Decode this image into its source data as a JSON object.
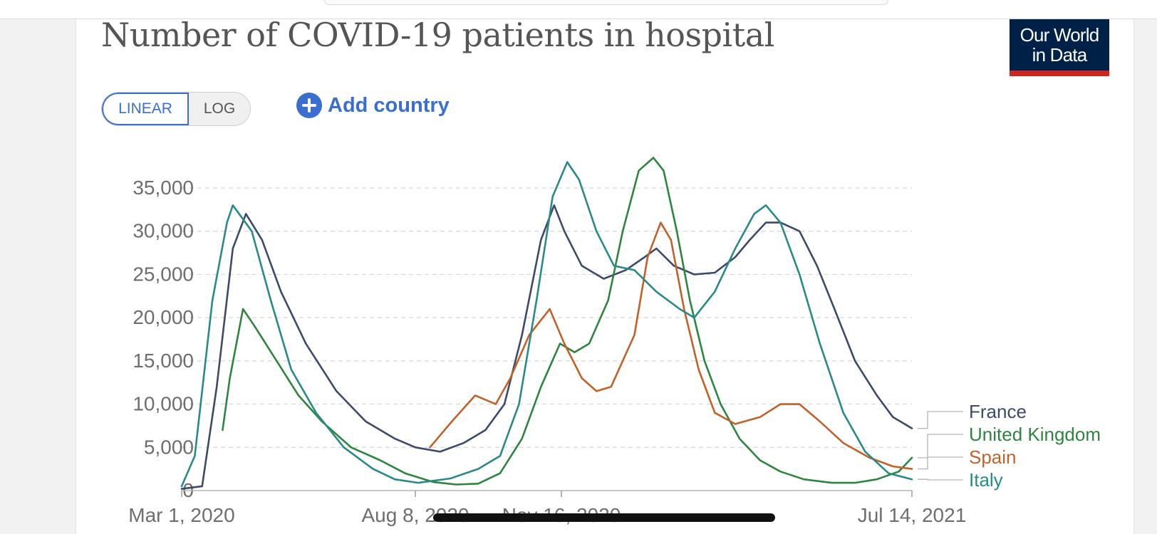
{
  "header": {
    "title": "Number of COVID-19 patients in hospital",
    "logo_line1": "Our World",
    "logo_line2": "in Data"
  },
  "controls": {
    "scale_linear": "LINEAR",
    "scale_log": "LOG",
    "scale_selected": "LINEAR",
    "add_country": "Add country"
  },
  "chart_data": {
    "type": "line",
    "title": "Number of COVID-19 patients in hospital",
    "xlabel": "",
    "ylabel": "",
    "ylim": [
      0,
      37500
    ],
    "x_range": [
      "2020-03-01",
      "2021-07-14"
    ],
    "grid": true,
    "legend_placement": "right",
    "yticks": [
      {
        "value": 0,
        "label": "0"
      },
      {
        "value": 5000,
        "label": "5,000"
      },
      {
        "value": 10000,
        "label": "10,000"
      },
      {
        "value": 15000,
        "label": "15,000"
      },
      {
        "value": 20000,
        "label": "20,000"
      },
      {
        "value": 25000,
        "label": "25,000"
      },
      {
        "value": 30000,
        "label": "30,000"
      },
      {
        "value": 35000,
        "label": "35,000"
      }
    ],
    "xticks": [
      {
        "date": "2020-03-01",
        "label": "Mar 1, 2020"
      },
      {
        "date": "2020-08-08",
        "label": "Aug 8, 2020"
      },
      {
        "date": "2020-11-16",
        "label": "Nov 16, 2020"
      },
      {
        "date": "2021-07-14",
        "label": "Jul 14, 2021"
      }
    ],
    "series": [
      {
        "name": "France",
        "color": "#3c4a6b",
        "points": [
          [
            "2020-03-01",
            200
          ],
          [
            "2020-03-15",
            500
          ],
          [
            "2020-03-25",
            12000
          ],
          [
            "2020-04-05",
            28000
          ],
          [
            "2020-04-14",
            32000
          ],
          [
            "2020-04-25",
            29000
          ],
          [
            "2020-05-08",
            23000
          ],
          [
            "2020-05-25",
            17000
          ],
          [
            "2020-06-15",
            11500
          ],
          [
            "2020-07-05",
            8000
          ],
          [
            "2020-07-25",
            6000
          ],
          [
            "2020-08-08",
            5000
          ],
          [
            "2020-08-25",
            4500
          ],
          [
            "2020-09-10",
            5500
          ],
          [
            "2020-09-25",
            7000
          ],
          [
            "2020-10-08",
            10000
          ],
          [
            "2020-10-20",
            18000
          ],
          [
            "2020-11-02",
            29000
          ],
          [
            "2020-11-11",
            33000
          ],
          [
            "2020-11-18",
            30000
          ],
          [
            "2020-11-30",
            26000
          ],
          [
            "2020-12-15",
            24500
          ],
          [
            "2020-12-30",
            25500
          ],
          [
            "2021-01-12",
            27000
          ],
          [
            "2021-01-20",
            28000
          ],
          [
            "2021-02-01",
            26000
          ],
          [
            "2021-02-15",
            25000
          ],
          [
            "2021-03-01",
            25200
          ],
          [
            "2021-03-15",
            27000
          ],
          [
            "2021-03-25",
            29000
          ],
          [
            "2021-04-05",
            31000
          ],
          [
            "2021-04-15",
            31000
          ],
          [
            "2021-04-28",
            30000
          ],
          [
            "2021-05-10",
            26000
          ],
          [
            "2021-05-22",
            21000
          ],
          [
            "2021-06-05",
            15000
          ],
          [
            "2021-06-20",
            11000
          ],
          [
            "2021-07-01",
            8500
          ],
          [
            "2021-07-14",
            7200
          ]
        ]
      },
      {
        "name": "United Kingdom",
        "color": "#2e8540",
        "points": [
          [
            "2020-03-29",
            7000
          ],
          [
            "2020-04-03",
            13000
          ],
          [
            "2020-04-12",
            21000
          ],
          [
            "2020-04-20",
            19000
          ],
          [
            "2020-05-05",
            15000
          ],
          [
            "2020-05-20",
            11000
          ],
          [
            "2020-06-05",
            8000
          ],
          [
            "2020-06-25",
            5000
          ],
          [
            "2020-07-15",
            3500
          ],
          [
            "2020-08-01",
            2000
          ],
          [
            "2020-08-20",
            1000
          ],
          [
            "2020-09-05",
            700
          ],
          [
            "2020-09-20",
            800
          ],
          [
            "2020-10-05",
            2000
          ],
          [
            "2020-10-20",
            6000
          ],
          [
            "2020-11-02",
            12000
          ],
          [
            "2020-11-15",
            17000
          ],
          [
            "2020-11-25",
            16000
          ],
          [
            "2020-12-05",
            17000
          ],
          [
            "2020-12-18",
            22000
          ],
          [
            "2020-12-28",
            30000
          ],
          [
            "2021-01-08",
            37000
          ],
          [
            "2021-01-18",
            38500
          ],
          [
            "2021-01-25",
            37000
          ],
          [
            "2021-02-03",
            30000
          ],
          [
            "2021-02-12",
            22000
          ],
          [
            "2021-02-22",
            15000
          ],
          [
            "2021-03-05",
            10000
          ],
          [
            "2021-03-18",
            6000
          ],
          [
            "2021-04-01",
            3500
          ],
          [
            "2021-04-15",
            2200
          ],
          [
            "2021-05-01",
            1300
          ],
          [
            "2021-05-20",
            900
          ],
          [
            "2021-06-05",
            900
          ],
          [
            "2021-06-20",
            1300
          ],
          [
            "2021-07-05",
            2200
          ],
          [
            "2021-07-14",
            3800
          ]
        ]
      },
      {
        "name": "Spain",
        "color": "#c0622a",
        "points": [
          [
            "2020-08-18",
            5000
          ],
          [
            "2020-09-02",
            8000
          ],
          [
            "2020-09-18",
            11000
          ],
          [
            "2020-10-02",
            10000
          ],
          [
            "2020-10-12",
            13000
          ],
          [
            "2020-10-25",
            18000
          ],
          [
            "2020-11-08",
            21000
          ],
          [
            "2020-11-18",
            17000
          ],
          [
            "2020-11-30",
            13000
          ],
          [
            "2020-12-10",
            11500
          ],
          [
            "2020-12-20",
            12000
          ],
          [
            "2021-01-05",
            18000
          ],
          [
            "2021-01-14",
            27000
          ],
          [
            "2021-01-23",
            31000
          ],
          [
            "2021-01-30",
            29000
          ],
          [
            "2021-02-08",
            21000
          ],
          [
            "2021-02-18",
            14000
          ],
          [
            "2021-03-01",
            9000
          ],
          [
            "2021-03-15",
            7700
          ],
          [
            "2021-04-01",
            8500
          ],
          [
            "2021-04-15",
            10000
          ],
          [
            "2021-04-28",
            10000
          ],
          [
            "2021-05-12",
            8000
          ],
          [
            "2021-05-28",
            5500
          ],
          [
            "2021-06-15",
            3800
          ],
          [
            "2021-07-01",
            2800
          ],
          [
            "2021-07-14",
            2500
          ]
        ]
      },
      {
        "name": "Italy",
        "color": "#2a8a88",
        "points": [
          [
            "2020-03-01",
            500
          ],
          [
            "2020-03-10",
            4000
          ],
          [
            "2020-03-22",
            22000
          ],
          [
            "2020-04-01",
            31000
          ],
          [
            "2020-04-05",
            33000
          ],
          [
            "2020-04-18",
            30000
          ],
          [
            "2020-05-01",
            22000
          ],
          [
            "2020-05-15",
            14000
          ],
          [
            "2020-06-01",
            9000
          ],
          [
            "2020-06-20",
            5000
          ],
          [
            "2020-07-10",
            2500
          ],
          [
            "2020-07-25",
            1300
          ],
          [
            "2020-08-10",
            900
          ],
          [
            "2020-09-01",
            1400
          ],
          [
            "2020-09-20",
            2500
          ],
          [
            "2020-10-05",
            4000
          ],
          [
            "2020-10-18",
            10000
          ],
          [
            "2020-10-30",
            22000
          ],
          [
            "2020-11-10",
            34000
          ],
          [
            "2020-11-20",
            38000
          ],
          [
            "2020-11-28",
            36000
          ],
          [
            "2020-12-10",
            30000
          ],
          [
            "2020-12-22",
            26000
          ],
          [
            "2021-01-05",
            25500
          ],
          [
            "2021-01-20",
            23000
          ],
          [
            "2021-02-05",
            21000
          ],
          [
            "2021-02-15",
            20000
          ],
          [
            "2021-03-01",
            23000
          ],
          [
            "2021-03-15",
            28000
          ],
          [
            "2021-03-28",
            32000
          ],
          [
            "2021-04-05",
            33000
          ],
          [
            "2021-04-15",
            31000
          ],
          [
            "2021-04-28",
            25000
          ],
          [
            "2021-05-12",
            17000
          ],
          [
            "2021-05-28",
            9000
          ],
          [
            "2021-06-12",
            4500
          ],
          [
            "2021-06-28",
            2000
          ],
          [
            "2021-07-14",
            1300
          ]
        ]
      }
    ]
  }
}
